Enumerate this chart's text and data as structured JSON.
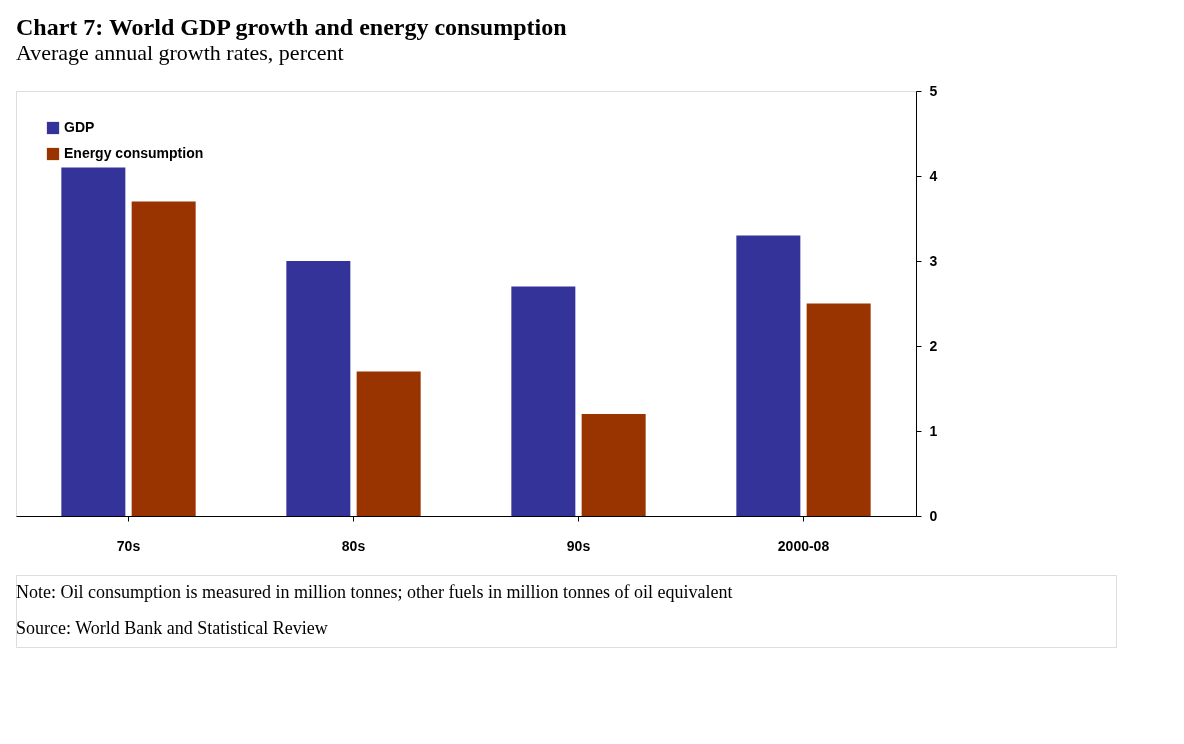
{
  "chart_data": {
    "type": "bar",
    "title": "Chart 7: World GDP growth and energy consumption",
    "subtitle": "Average annual growth rates, percent",
    "categories": [
      "70s",
      "80s",
      "90s",
      "2000-08"
    ],
    "series": [
      {
        "name": "GDP",
        "color": "#333399",
        "values": [
          4.1,
          3.0,
          2.7,
          3.3
        ]
      },
      {
        "name": "Energy consumption",
        "color": "#993300",
        "values": [
          3.7,
          1.7,
          1.2,
          2.5
        ]
      }
    ],
    "ylim": [
      0,
      5
    ],
    "yticks": [
      0,
      1,
      2,
      3,
      4,
      5
    ],
    "grid": false,
    "legend": "top left",
    "annotations": [
      "Note: Oil consumption is measured in million tonnes; other fuels in million tonnes of oil equivalent",
      "Source: World Bank and Statistical Review"
    ]
  }
}
